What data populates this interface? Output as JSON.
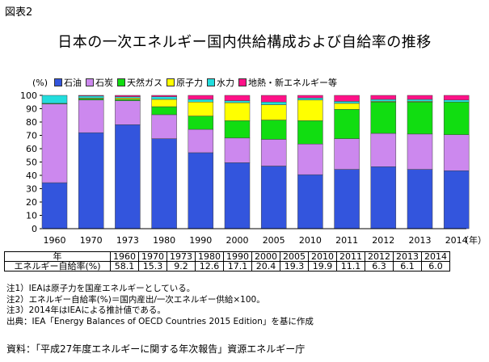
{
  "figure_label": "図表2",
  "chart_data": {
    "type": "bar",
    "stacked": true,
    "title": "日本の一次エネルギー国内供給構成および自給率の推移",
    "ylabel": "(%)",
    "ylim": [
      0,
      100
    ],
    "yticks": [
      0,
      10,
      20,
      30,
      40,
      50,
      60,
      70,
      80,
      90,
      100
    ],
    "categories": [
      "1960",
      "1970",
      "1973",
      "1980",
      "1990",
      "2000",
      "2005",
      "2010",
      "2011",
      "2012",
      "2013",
      "2014"
    ],
    "year_suffix": "（年）",
    "series": [
      {
        "name": "石油",
        "color": "#3355dd",
        "values": [
          34.5,
          72.0,
          78.0,
          67.5,
          57.0,
          49.5,
          47.0,
          40.5,
          44.5,
          46.5,
          44.5,
          43.5
        ]
      },
      {
        "name": "石炭",
        "color": "#cc88ee",
        "values": [
          59.0,
          24.5,
          18.0,
          18.0,
          17.5,
          18.5,
          20.0,
          23.0,
          23.0,
          25.0,
          26.5,
          27.0
        ]
      },
      {
        "name": "天然ガス",
        "color": "#11dd11",
        "values": [
          0.5,
          1.0,
          1.0,
          6.0,
          10.0,
          13.0,
          14.5,
          17.5,
          22.0,
          23.5,
          24.0,
          24.5
        ]
      },
      {
        "name": "原子力",
        "color": "#ffff00",
        "values": [
          0.0,
          0.5,
          1.0,
          5.5,
          10.5,
          13.5,
          11.5,
          15.5,
          4.5,
          0.5,
          0.5,
          0.0
        ]
      },
      {
        "name": "水力",
        "color": "#22dddd",
        "values": [
          6.0,
          1.5,
          1.0,
          2.0,
          2.0,
          1.5,
          2.0,
          1.5,
          1.5,
          1.5,
          1.5,
          1.5
        ]
      },
      {
        "name": "地熱・新エネルギー等",
        "color": "#ff1188",
        "values": [
          0.0,
          0.5,
          1.0,
          1.0,
          3.0,
          4.0,
          5.0,
          2.0,
          4.5,
          3.0,
          3.0,
          3.5
        ]
      }
    ]
  },
  "legend_unit": "(%)",
  "table": {
    "header_label": "年",
    "row_label": "エネルギー自給率(%)",
    "years": [
      "1960",
      "1970",
      "1973",
      "1980",
      "1990",
      "2000",
      "2005",
      "2010",
      "2011",
      "2012",
      "2013",
      "2014"
    ],
    "values": [
      "58.1",
      "15.3",
      "9.2",
      "12.6",
      "17.1",
      "20.4",
      "19.3",
      "19.9",
      "11.1",
      "6.3",
      "6.1",
      "6.0"
    ]
  },
  "notes": [
    "注1）IEAは原子力を国産エネルギーとしている。",
    "注2）エネルギー自給率(%)＝国内産出/一次エネルギー供給×100。",
    "注3）2014年はIEAによる推計値である。",
    "出典：IEA「Energy Balances of OECD Countries 2015 Edition」を基に作成"
  ],
  "source": "資料：「平成27年度エネルギーに関する年次報告」資源エネルギー庁"
}
